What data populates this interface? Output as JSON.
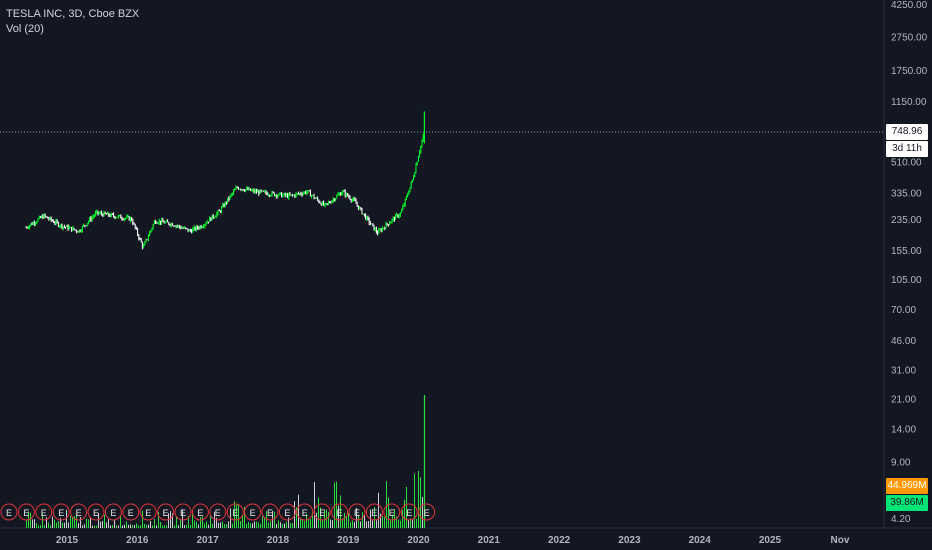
{
  "legend": {
    "title": "TESLA INC, 3D, Cboe BZX",
    "indicator": "Vol (20)"
  },
  "colors": {
    "background": "#131722",
    "up_candle": "#00ff2a",
    "down_candle": "#ffffff",
    "volume_bar": "#2ee03e",
    "volume_bar_down": "#cfd2d6",
    "earnings_marker": "#e0353b",
    "axis_text": "#b2b5be",
    "price_tag_bg": "#ffffff",
    "volume_tag_high": "#ff9800",
    "volume_tag_low": "#00e676"
  },
  "price_axis": {
    "labels": [
      "4250.00",
      "2750.00",
      "1750.00",
      "1150.00",
      "510.00",
      "335.00",
      "235.00",
      "155.00",
      "105.00",
      "70.00",
      "46.00",
      "31.00",
      "21.00",
      "14.00",
      "9.00",
      "4.20"
    ],
    "scale": "log"
  },
  "time_axis": {
    "labels": [
      "2015",
      "2016",
      "2017",
      "2018",
      "2019",
      "2020",
      "2021",
      "2022",
      "2023",
      "2024",
      "2025",
      "Nov"
    ]
  },
  "tags": {
    "last_price": "748.96",
    "countdown": "3d 11h",
    "volume_high": "44.969M",
    "volume_low": "39.86M"
  },
  "earnings": {
    "marker_label": "E",
    "count": 25
  },
  "chart_data": {
    "type": "line",
    "title": "TESLA INC, 3D, Cboe BZX",
    "xlabel": "",
    "ylabel": "",
    "x_range": [
      "2014-05",
      "2025-12"
    ],
    "ylim": [
      4.2,
      4250
    ],
    "scale": "log",
    "grid": false,
    "series": [
      {
        "x": [
          "2014-06",
          "2014-09",
          "2014-12",
          "2015-03",
          "2015-06",
          "2015-09",
          "2015-12",
          "2016-02",
          "2016-04",
          "2016-07",
          "2016-10",
          "2016-12",
          "2017-03",
          "2017-06",
          "2017-09",
          "2017-12",
          "2018-03",
          "2018-06",
          "2018-09",
          "2018-12",
          "2019-02",
          "2019-04",
          "2019-06",
          "2019-08",
          "2019-10",
          "2019-12",
          "2020-01",
          "2020-02"
        ],
        "values": [
          210,
          245,
          215,
          200,
          255,
          245,
          235,
          160,
          230,
          220,
          200,
          215,
          260,
          360,
          340,
          330,
          320,
          340,
          280,
          340,
          300,
          240,
          195,
          225,
          255,
          400,
          560,
          748.96
        ]
      }
    ],
    "volume": {
      "x": [
        "2014-06",
        "2015-01",
        "2015-06",
        "2016-01",
        "2016-06",
        "2017-01",
        "2017-06",
        "2018-01",
        "2018-06",
        "2018-09",
        "2019-01",
        "2019-06",
        "2019-10",
        "2020-01",
        "2020-02"
      ],
      "values": [
        12,
        14,
        11,
        13,
        12,
        16,
        20,
        18,
        28,
        42,
        25,
        36,
        30,
        45,
        95
      ],
      "unit": "M"
    }
  }
}
